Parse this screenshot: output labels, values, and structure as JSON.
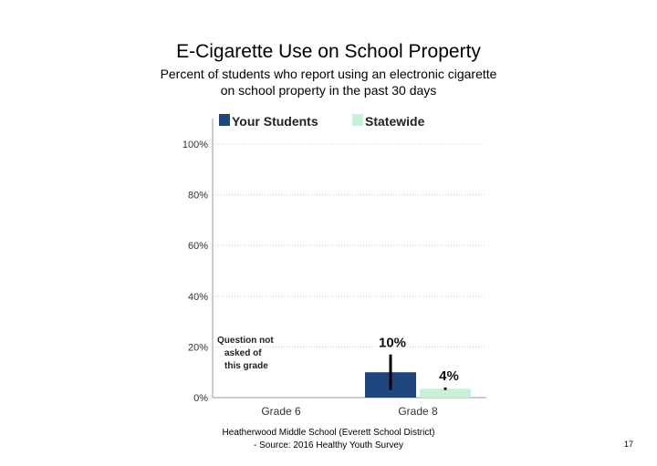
{
  "title": "E-Cigarette Use on School Property",
  "subtitle_lines": [
    "Percent of students who report using an electronic cigarette",
    "on school property in the past 30 days"
  ],
  "footer_lines": [
    "Heatherwood Middle School (Everett School District)",
    "- Source: 2016 Healthy Youth Survey"
  ],
  "page_number": "17",
  "chart_data": {
    "type": "bar",
    "categories": [
      "Grade 6",
      "Grade 8"
    ],
    "series": [
      {
        "name": "Your Students",
        "color": "#1f477e",
        "values": [
          null,
          10
        ],
        "labels": [
          "",
          "10%"
        ],
        "error_low": [
          null,
          3
        ],
        "error_high": [
          null,
          17
        ]
      },
      {
        "name": "Statewide",
        "color": "#c8f2d8",
        "values": [
          null,
          3.5
        ],
        "labels": [
          "",
          "4%"
        ],
        "error_low": [
          null,
          3
        ],
        "error_high": [
          null,
          4
        ]
      }
    ],
    "yticks": [
      0,
      20,
      40,
      60,
      80,
      100
    ],
    "ytick_labels": [
      "0%",
      "20%",
      "40%",
      "60%",
      "80%",
      "100%"
    ],
    "ylim": [
      0,
      100
    ],
    "grid": true,
    "legend_position": "top",
    "annotations": [
      {
        "category": "Grade 6",
        "lines": [
          "Question not",
          "asked of",
          "this grade"
        ]
      }
    ]
  }
}
